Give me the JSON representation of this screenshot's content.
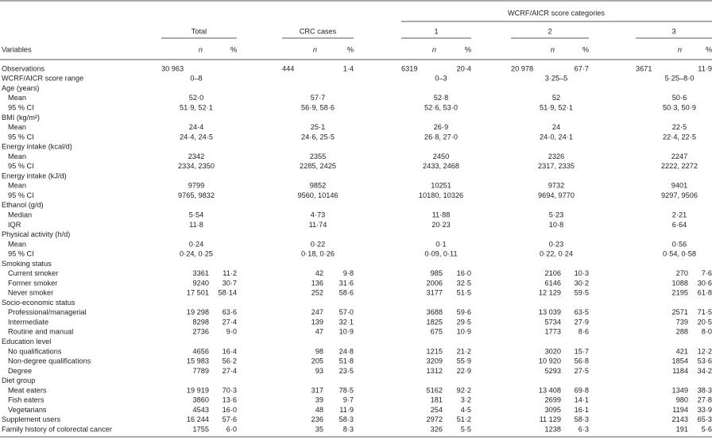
{
  "header": {
    "group_title": "WCRF/AICR score categories",
    "groups": [
      "Total",
      "CRC cases",
      "1",
      "2",
      "3"
    ],
    "variables_label": "Variables",
    "n_label": "n",
    "pct_label": "%"
  },
  "body": [
    {
      "label": "Observations",
      "cells": [
        [
          "30 963",
          null
        ],
        [
          "444",
          "1·4"
        ],
        [
          "6319",
          "20·4"
        ],
        [
          "20 978",
          "67·7"
        ],
        [
          "3671",
          "11·9"
        ]
      ]
    },
    {
      "label": "WCRF/AICR score range",
      "cells": [
        "0–8",
        null,
        "0–3",
        "3·25–5",
        "5·25–8·0"
      ]
    },
    {
      "label": "Age (years)",
      "rows": [
        {
          "label": "Mean",
          "cells": [
            "52·0",
            "57·7",
            "52·8",
            "52",
            "50·6"
          ]
        },
        {
          "label": "95 % CI",
          "cells": [
            "51·9, 52·1",
            "56·9, 58·6",
            "52·6, 53·0",
            "51·9, 52·1",
            "50·3, 50·9"
          ]
        }
      ]
    },
    {
      "label": "BMI (kg/m²)",
      "rows": [
        {
          "label": "Mean",
          "cells": [
            "24·4",
            "25·1",
            "26·9",
            "24",
            "22·5"
          ]
        },
        {
          "label": "95 % CI",
          "cells": [
            "24·4, 24·5",
            "24·6, 25·5",
            "26·8, 27·0",
            "24·0, 24·1",
            "22·4, 22·5"
          ]
        }
      ]
    },
    {
      "label": "Energy intake (kcal/d)",
      "rows": [
        {
          "label": "Mean",
          "cells": [
            "2342",
            "2355",
            "2450",
            "2326",
            "2247"
          ]
        },
        {
          "label": "95 % CI",
          "cells": [
            "2334, 2350",
            "2285, 2425",
            "2433, 2468",
            "2317, 2335",
            "2222, 2272"
          ]
        }
      ]
    },
    {
      "label": "Energy intake (kJ/d)",
      "rows": [
        {
          "label": "Mean",
          "cells": [
            "9799",
            "9852",
            "10251",
            "9732",
            "9401"
          ]
        },
        {
          "label": "95 % CI",
          "cells": [
            "9765, 9832",
            "9560, 10146",
            "10180, 10326",
            "9694, 9770",
            "9297, 9506"
          ]
        }
      ]
    },
    {
      "label": "Ethanol (g/d)",
      "rows": [
        {
          "label": "Median",
          "cells": [
            "5·54",
            "4·73",
            "11·88",
            "5·23",
            "2·21"
          ]
        },
        {
          "label": "IQR",
          "cells": [
            "11·8",
            "11·74",
            "20·23",
            "10·8",
            "6·64"
          ]
        }
      ]
    },
    {
      "label": "Physical activity (h/d)",
      "rows": [
        {
          "label": "Mean",
          "cells": [
            "0·24",
            "0·22",
            "0·1",
            "0·23",
            "0·56"
          ]
        },
        {
          "label": "95 % CI",
          "cells": [
            "0·24, 0·25",
            "0·18, 0·26",
            "0·09, 0·11",
            "0·22, 0·24",
            "0·54, 0·58"
          ]
        }
      ]
    },
    {
      "label": "Smoking status",
      "rows": [
        {
          "label": "Current smoker",
          "cells": [
            [
              "3361",
              "11·2"
            ],
            [
              "42",
              "9·8"
            ],
            [
              "985",
              "16·0"
            ],
            [
              "2106",
              "10·3"
            ],
            [
              "270",
              "7·6"
            ]
          ]
        },
        {
          "label": "Former smoker",
          "cells": [
            [
              "9240",
              "30·7"
            ],
            [
              "136",
              "31·6"
            ],
            [
              "2006",
              "32·5"
            ],
            [
              "6146",
              "30·2"
            ],
            [
              "1088",
              "30·6"
            ]
          ]
        },
        {
          "label": "Never smoker",
          "cells": [
            [
              "17 501",
              "58·14"
            ],
            [
              "252",
              "58·6"
            ],
            [
              "3177",
              "51·5"
            ],
            [
              "12 129",
              "59·5"
            ],
            [
              "2195",
              "61·8"
            ]
          ]
        }
      ]
    },
    {
      "label": "Socio-economic status",
      "rows": [
        {
          "label": "Professional/managerial",
          "cells": [
            [
              "19 298",
              "63·6"
            ],
            [
              "247",
              "57·0"
            ],
            [
              "3688",
              "59·6"
            ],
            [
              "13 039",
              "63·5"
            ],
            [
              "2571",
              "71·5"
            ]
          ]
        },
        {
          "label": "Intermediate",
          "cells": [
            [
              "8298",
              "27·4"
            ],
            [
              "139",
              "32·1"
            ],
            [
              "1825",
              "29·5"
            ],
            [
              "5734",
              "27·9"
            ],
            [
              "739",
              "20·5"
            ]
          ]
        },
        {
          "label": "Routine and manual",
          "cells": [
            [
              "2736",
              "9·0"
            ],
            [
              "47",
              "10·9"
            ],
            [
              "675",
              "10·9"
            ],
            [
              "1773",
              "8·6"
            ],
            [
              "288",
              "8·0"
            ]
          ]
        }
      ]
    },
    {
      "label": "Education level",
      "rows": [
        {
          "label": "No qualifications",
          "cells": [
            [
              "4656",
              "16·4"
            ],
            [
              "98",
              "24·8"
            ],
            [
              "1215",
              "21·2"
            ],
            [
              "3020",
              "15·7"
            ],
            [
              "421",
              "12·2"
            ]
          ]
        },
        {
          "label": "Non-degree qualifications",
          "cells": [
            [
              "15 983",
              "56·2"
            ],
            [
              "205",
              "51·8"
            ],
            [
              "3209",
              "55·9"
            ],
            [
              "10 920",
              "56·8"
            ],
            [
              "1854",
              "53·6"
            ]
          ]
        },
        {
          "label": "Degree",
          "cells": [
            [
              "7789",
              "27·4"
            ],
            [
              "93",
              "23·5"
            ],
            [
              "1312",
              "22·9"
            ],
            [
              "5293",
              "27·5"
            ],
            [
              "1184",
              "34·2"
            ]
          ]
        }
      ]
    },
    {
      "label": "Diet group",
      "rows": [
        {
          "label": "Meat eaters",
          "cells": [
            [
              "19 919",
              "70·3"
            ],
            [
              "317",
              "78·5"
            ],
            [
              "5162",
              "92·2"
            ],
            [
              "13 408",
              "69·8"
            ],
            [
              "1349",
              "38·3"
            ]
          ]
        },
        {
          "label": "Fish eaters",
          "cells": [
            [
              "3860",
              "13·6"
            ],
            [
              "39",
              "9·7"
            ],
            [
              "181",
              "3·2"
            ],
            [
              "2699",
              "14·1"
            ],
            [
              "980",
              "27·8"
            ]
          ]
        },
        {
          "label": "Vegetarians",
          "cells": [
            [
              "4543",
              "16·0"
            ],
            [
              "48",
              "11·9"
            ],
            [
              "254",
              "4·5"
            ],
            [
              "3095",
              "16·1"
            ],
            [
              "1194",
              "33·9"
            ]
          ]
        }
      ]
    },
    {
      "label": "Supplement users",
      "cells": [
        [
          "16 244",
          "57·6"
        ],
        [
          "236",
          "58·3"
        ],
        [
          "2972",
          "51·2"
        ],
        [
          "11 129",
          "58·3"
        ],
        [
          "2143",
          "65·3"
        ]
      ]
    },
    {
      "label": "Family history of colorectal cancer",
      "cells": [
        [
          "1755",
          "6·0"
        ],
        [
          "35",
          "8·3"
        ],
        [
          "326",
          "5·5"
        ],
        [
          "1238",
          "6·3"
        ],
        [
          "191",
          "5·6"
        ]
      ]
    }
  ]
}
